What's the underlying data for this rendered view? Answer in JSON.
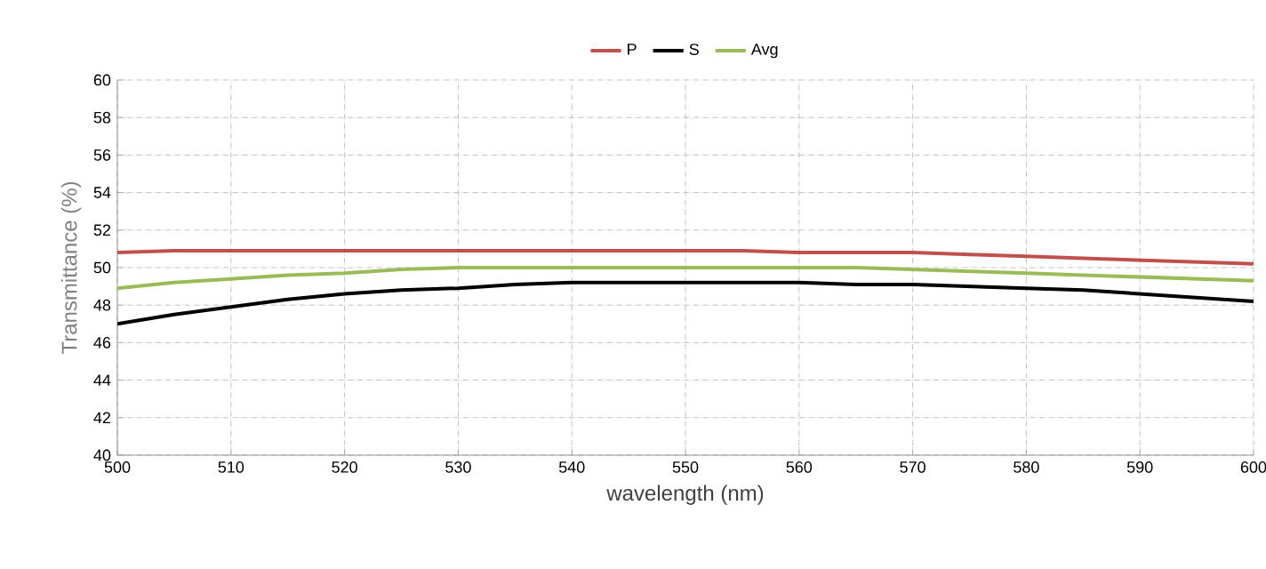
{
  "chart_data": {
    "type": "line",
    "xlabel": "wavelength (nm)",
    "ylabel": "Transmittance (%)",
    "x": [
      500,
      505,
      510,
      515,
      520,
      525,
      530,
      535,
      540,
      545,
      550,
      555,
      560,
      565,
      570,
      575,
      580,
      585,
      590,
      595,
      600
    ],
    "series": [
      {
        "name": "P",
        "color": "#c0504d",
        "values": [
          50.8,
          50.9,
          50.9,
          50.9,
          50.9,
          50.9,
          50.9,
          50.9,
          50.9,
          50.9,
          50.9,
          50.9,
          50.8,
          50.8,
          50.8,
          50.7,
          50.6,
          50.5,
          50.4,
          50.3,
          50.2
        ]
      },
      {
        "name": "S",
        "color": "#000000",
        "values": [
          47.0,
          47.5,
          47.9,
          48.3,
          48.6,
          48.8,
          48.9,
          49.1,
          49.2,
          49.2,
          49.2,
          49.2,
          49.2,
          49.1,
          49.1,
          49.0,
          48.9,
          48.8,
          48.6,
          48.4,
          48.2
        ]
      },
      {
        "name": "Avg",
        "color": "#9bbb59",
        "values": [
          48.9,
          49.2,
          49.4,
          49.6,
          49.7,
          49.9,
          50.0,
          50.0,
          50.0,
          50.0,
          50.0,
          50.0,
          50.0,
          50.0,
          49.9,
          49.8,
          49.7,
          49.6,
          49.5,
          49.4,
          49.3
        ]
      }
    ],
    "xlim": [
      500,
      600
    ],
    "ylim": [
      40,
      60
    ],
    "xticks": [
      500,
      510,
      520,
      530,
      540,
      550,
      560,
      570,
      580,
      590,
      600
    ],
    "yticks": [
      40,
      42,
      44,
      46,
      48,
      50,
      52,
      54,
      56,
      58,
      60
    ],
    "grid": true,
    "legend": "top",
    "marker": "none",
    "line_style": "solid"
  }
}
